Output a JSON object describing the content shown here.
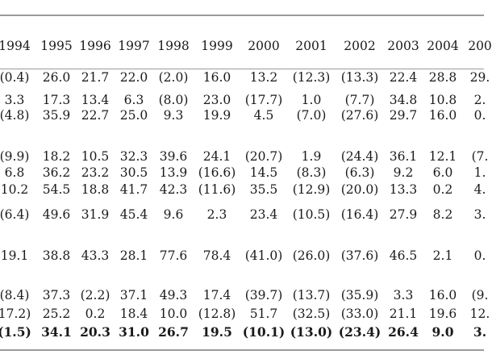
{
  "table": {
    "years": [
      "1994",
      "1995",
      "1996",
      "1997",
      "1998",
      "1999",
      "2000",
      "2001",
      "2002",
      "2003",
      "2004",
      "200"
    ],
    "rows": [
      {
        "bold": false,
        "values": [
          "(0.4)",
          "26.0",
          "21.7",
          "22.0",
          "(2.0)",
          "16.0",
          "13.2",
          "(12.3)",
          "(13.3)",
          "22.4",
          "28.8",
          "29."
        ]
      },
      {
        "bold": false,
        "values": [
          "3.3",
          "17.3",
          "13.4",
          "6.3",
          "(8.0)",
          "23.0",
          "(17.7)",
          "1.0",
          "(7.7)",
          "34.8",
          "10.8",
          "2."
        ]
      },
      {
        "bold": false,
        "values": [
          "(4.8)",
          "35.9",
          "22.7",
          "25.0",
          "9.3",
          "19.9",
          "4.5",
          "(7.0)",
          "(27.6)",
          "29.7",
          "16.0",
          "0."
        ]
      },
      {
        "bold": false,
        "values": [
          "(9.9)",
          "18.2",
          "10.5",
          "32.3",
          "39.6",
          "24.1",
          "(20.7)",
          "1.9",
          "(24.4)",
          "36.1",
          "12.1",
          "(7."
        ]
      },
      {
        "bold": false,
        "values": [
          "6.8",
          "36.2",
          "23.2",
          "30.5",
          "13.9",
          "(16.6)",
          "14.5",
          "(8.3)",
          "(6.3)",
          "9.2",
          "6.0",
          "1."
        ]
      },
      {
        "bold": false,
        "values": [
          "10.2",
          "54.5",
          "18.8",
          "41.7",
          "42.3",
          "(11.6)",
          "35.5",
          "(12.9)",
          "(20.0)",
          "13.3",
          "0.2",
          "4."
        ]
      },
      {
        "bold": false,
        "values": [
          "(6.4)",
          "49.6",
          "31.9",
          "45.4",
          "9.6",
          "2.3",
          "23.4",
          "(10.5)",
          "(16.4)",
          "27.9",
          "8.2",
          "3."
        ]
      },
      {
        "bold": false,
        "values": [
          "19.1",
          "38.8",
          "43.3",
          "28.1",
          "77.6",
          "78.4",
          "(41.0)",
          "(26.0)",
          "(37.6)",
          "46.5",
          "2.1",
          "0."
        ]
      },
      {
        "bold": false,
        "values": [
          "(8.4)",
          "37.3",
          "(2.2)",
          "37.1",
          "49.3",
          "17.4",
          "(39.7)",
          "(13.7)",
          "(35.9)",
          "3.3",
          "16.0",
          "(9."
        ]
      },
      {
        "bold": false,
        "values": [
          "17.2)",
          "25.2",
          "0.2",
          "18.4",
          "10.0",
          "(12.8)",
          "51.7",
          "(32.5)",
          "(33.0)",
          "21.1",
          "19.6",
          "12."
        ]
      },
      {
        "bold": true,
        "values": [
          "(1.5)",
          "34.1",
          "20.3",
          "31.0",
          "26.7",
          "19.5",
          "(10.1)",
          "(13.0)",
          "(23.4)",
          "26.4",
          "9.0",
          "3."
        ]
      }
    ]
  }
}
